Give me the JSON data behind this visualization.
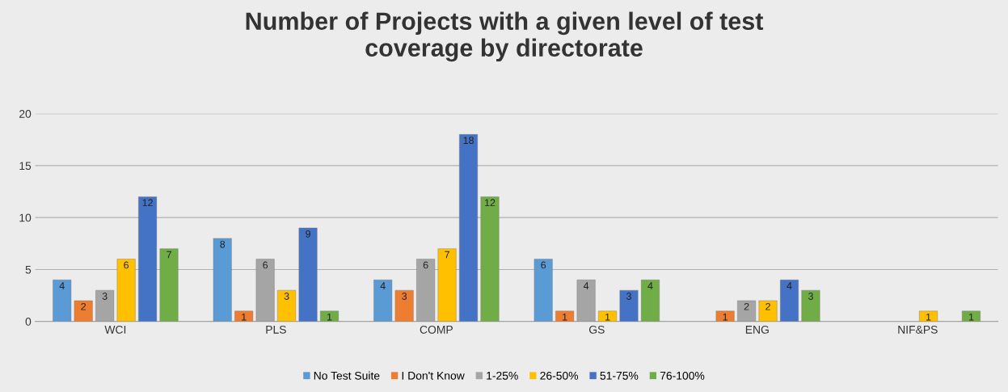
{
  "chart_data": {
    "type": "bar",
    "title": "Number of Projects with a given level of test\ncoverage by directorate",
    "categories": [
      "WCI",
      "PLS",
      "COMP",
      "GS",
      "ENG",
      "NIF&PS"
    ],
    "series": [
      {
        "name": "No Test Suite",
        "color": "#5b9bd5",
        "values": [
          4,
          8,
          4,
          6,
          null,
          null
        ]
      },
      {
        "name": "I Don't Know",
        "color": "#ed7d31",
        "values": [
          2,
          1,
          3,
          1,
          1,
          null
        ]
      },
      {
        "name": "1-25%",
        "color": "#a5a5a5",
        "values": [
          3,
          6,
          6,
          4,
          2,
          null
        ]
      },
      {
        "name": "26-50%",
        "color": "#ffc000",
        "values": [
          6,
          3,
          7,
          1,
          2,
          1
        ]
      },
      {
        "name": "51-75%",
        "color": "#4472c4",
        "values": [
          12,
          9,
          18,
          3,
          4,
          null
        ]
      },
      {
        "name": "76-100%",
        "color": "#70ad47",
        "values": [
          7,
          1,
          12,
          4,
          3,
          1
        ]
      }
    ],
    "ylim": [
      0,
      20
    ],
    "yticks": [
      0,
      5,
      10,
      15,
      20
    ],
    "grid": "y",
    "legend": "bottom",
    "data_labels": true
  }
}
